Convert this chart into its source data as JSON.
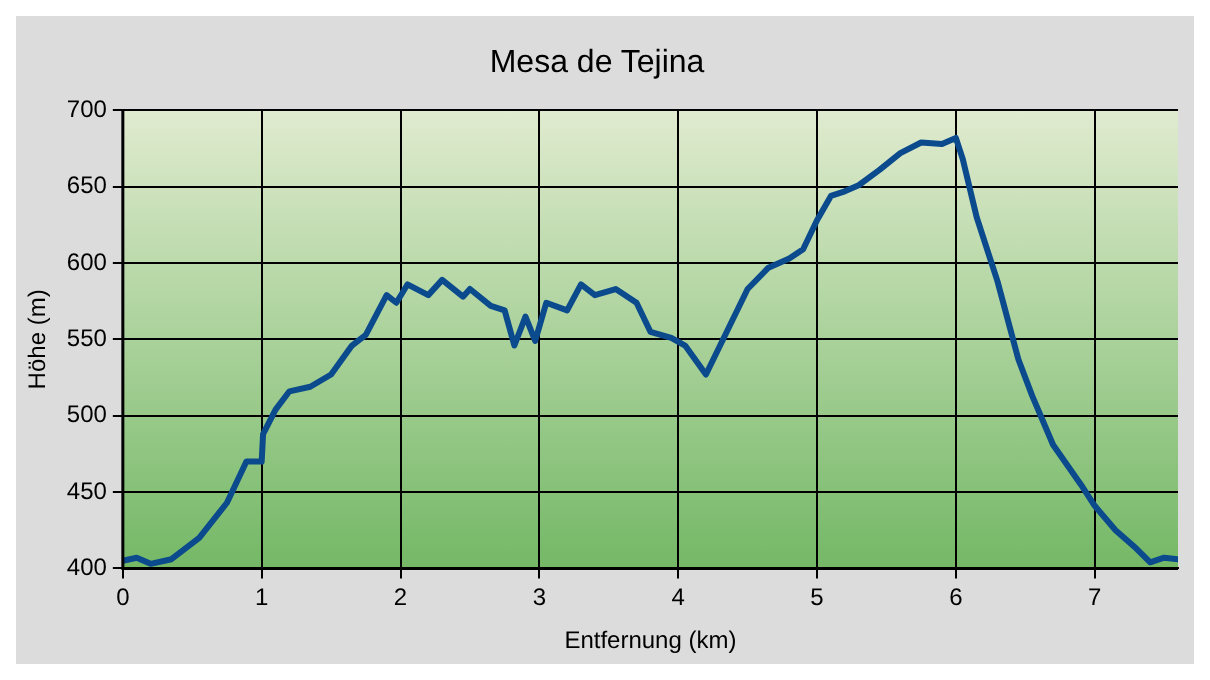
{
  "chart_data": {
    "type": "line",
    "title": "Mesa de Tejina",
    "xlabel": "Entfernung (km)",
    "ylabel": "Höhe (m)",
    "x": [
      0,
      0.1,
      0.2,
      0.35,
      0.55,
      0.75,
      0.89,
      1.0,
      1.01,
      1.1,
      1.2,
      1.35,
      1.5,
      1.65,
      1.75,
      1.9,
      1.97,
      2.05,
      2.2,
      2.3,
      2.45,
      2.5,
      2.65,
      2.75,
      2.82,
      2.9,
      2.97,
      3.05,
      3.2,
      3.3,
      3.4,
      3.55,
      3.7,
      3.8,
      3.95,
      4.05,
      4.2,
      4.35,
      4.5,
      4.65,
      4.8,
      4.9,
      5.0,
      5.1,
      5.2,
      5.3,
      5.45,
      5.6,
      5.75,
      5.9,
      6.0,
      6.05,
      6.15,
      6.3,
      6.45,
      6.55,
      6.7,
      6.9,
      7.0,
      7.15,
      7.3,
      7.4,
      7.5,
      7.6
    ],
    "series": [
      {
        "color": "#0b4a8c",
        "values": [
          405,
          407,
          403,
          406,
          420,
          443,
          470,
          470,
          488,
          504,
          516,
          519,
          527,
          546,
          553,
          579,
          574,
          586,
          579,
          589,
          578,
          583,
          572,
          569,
          546,
          565,
          549,
          574,
          569,
          586,
          579,
          583,
          574,
          555,
          551,
          546,
          527,
          555,
          583,
          597,
          603,
          609,
          628,
          644,
          647,
          651,
          661,
          672,
          679,
          678,
          682,
          668,
          630,
          588,
          537,
          513,
          481,
          455,
          441,
          425,
          413,
          404,
          407,
          406
        ]
      }
    ],
    "xlim": [
      0,
      7.6
    ],
    "xticks": [
      0,
      1,
      2,
      3,
      4,
      5,
      6,
      7
    ],
    "ylim": [
      400,
      700
    ],
    "yticks": [
      400,
      450,
      500,
      550,
      600,
      650,
      700
    ],
    "grid": true,
    "legend": false,
    "marker": "none",
    "line_style": "solid"
  }
}
